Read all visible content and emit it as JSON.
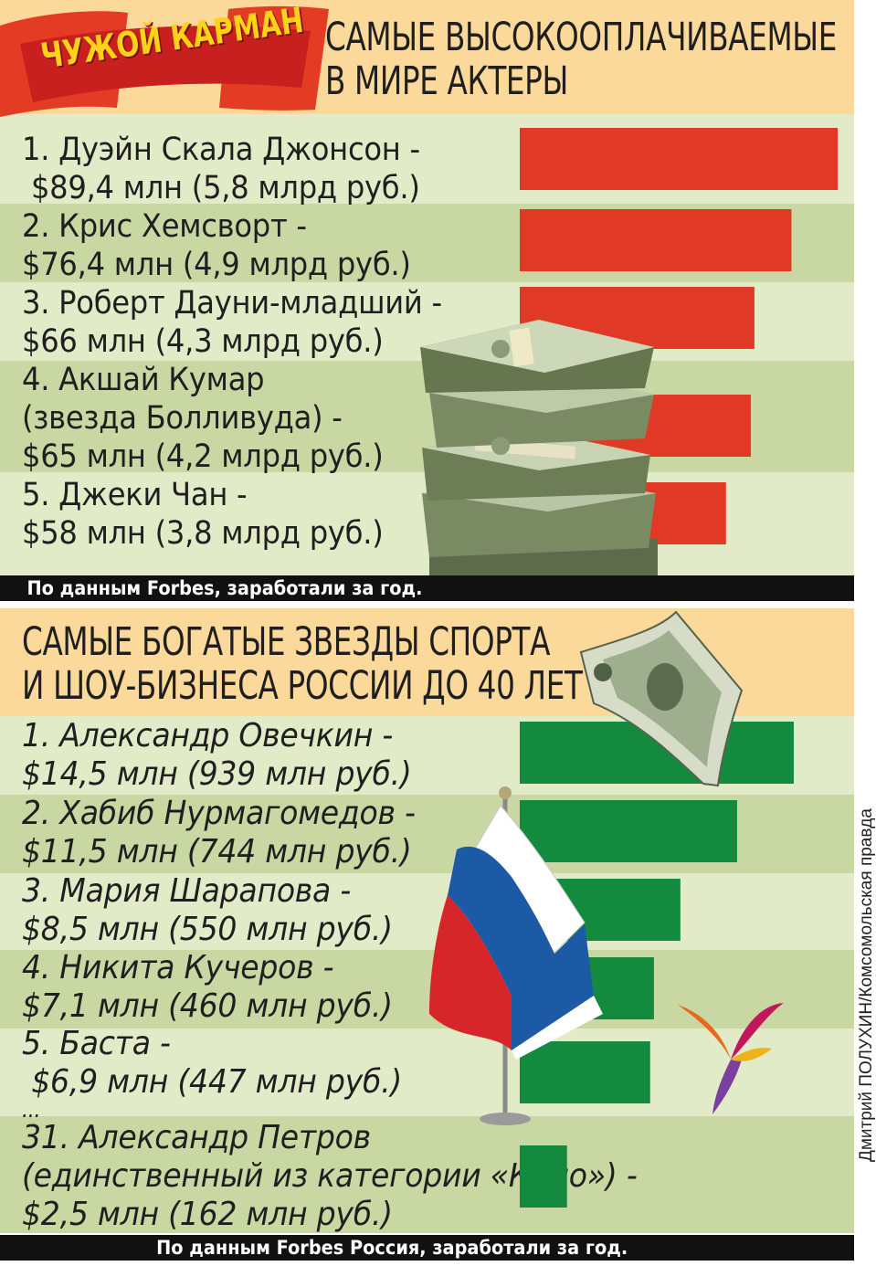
{
  "badge": {
    "label": "ЧУЖОЙ КАРМАН"
  },
  "colors": {
    "header_band": "#fbd99a",
    "band_light": "#e2ebc8",
    "band_dark": "#c9d7a3",
    "actor_bar": "#e03a27",
    "sport_bar": "#148a3f",
    "footnote_bg": "#111111"
  },
  "chart_data": [
    {
      "type": "bar",
      "orientation": "horizontal",
      "title_lines": [
        "САМЫЕ ВЫСОКООПЛАЧИВАЕМЫЕ",
        "В МИРЕ АКТЕРЫ"
      ],
      "unit": "$ млн",
      "entries": [
        {
          "lines": [
            "1. Дуэйн Скала Джонсон -",
            " $89,4 млн (5,8 млрд руб.)"
          ],
          "value": 89.4
        },
        {
          "lines": [
            "2. Крис Хемсворт -",
            "$76,4 млн (4,9 млрд руб.)"
          ],
          "value": 76.4
        },
        {
          "lines": [
            "3. Роберт Дауни-младший -",
            "$66 млн (4,3 млрд руб.)"
          ],
          "value": 66
        },
        {
          "lines": [
            "4. Акшай Кумар",
            "(звезда Болливуда) -",
            "$65 млн (4,2 млрд руб.)"
          ],
          "value": 65
        },
        {
          "lines": [
            "5. Джеки Чан -",
            "$58 млн (3,8 млрд руб.)"
          ],
          "value": 58
        }
      ],
      "bar_color": "#e03a27",
      "footnote": "По данным Forbes, заработали за год."
    },
    {
      "type": "bar",
      "orientation": "horizontal",
      "title_lines": [
        "САМЫЕ БОГАТЫЕ ЗВЕЗДЫ СПОРТА",
        "И ШОУ-БИЗНЕСА РОССИИ ДО 40 ЛЕТ"
      ],
      "unit": "$ млн",
      "entries": [
        {
          "lines": [
            "1. Александр Овечкин -",
            "$14,5 млн (939 млн руб.)"
          ],
          "value": 14.5
        },
        {
          "lines": [
            "2. Хабиб Нурмагомедов -",
            "$11,5 млн (744 млн руб.)"
          ],
          "value": 11.5
        },
        {
          "lines": [
            "3. Мария Шарапова -",
            "$8,5 млн (550 млн руб.)"
          ],
          "value": 8.5
        },
        {
          "lines": [
            "4. Никита Кучеров -",
            "$7,1 млн (460 млн руб.)"
          ],
          "value": 7.1
        },
        {
          "lines": [
            "5. Баста -",
            " $6,9 млн (447 млн руб.)"
          ],
          "value": 6.9
        },
        {
          "lines": [
            "31. Александр Петров",
            "(единственный из категории «Кино») -",
            "$2,5 млн (162 млн руб.)"
          ],
          "value": 2.5
        }
      ],
      "ellipsis": "...",
      "bar_color": "#148a3f",
      "footnote": "По данным Forbes Россия, заработали за год."
    }
  ],
  "credit": "Дмитрий ПОЛУХИН/Комсомольская правда"
}
